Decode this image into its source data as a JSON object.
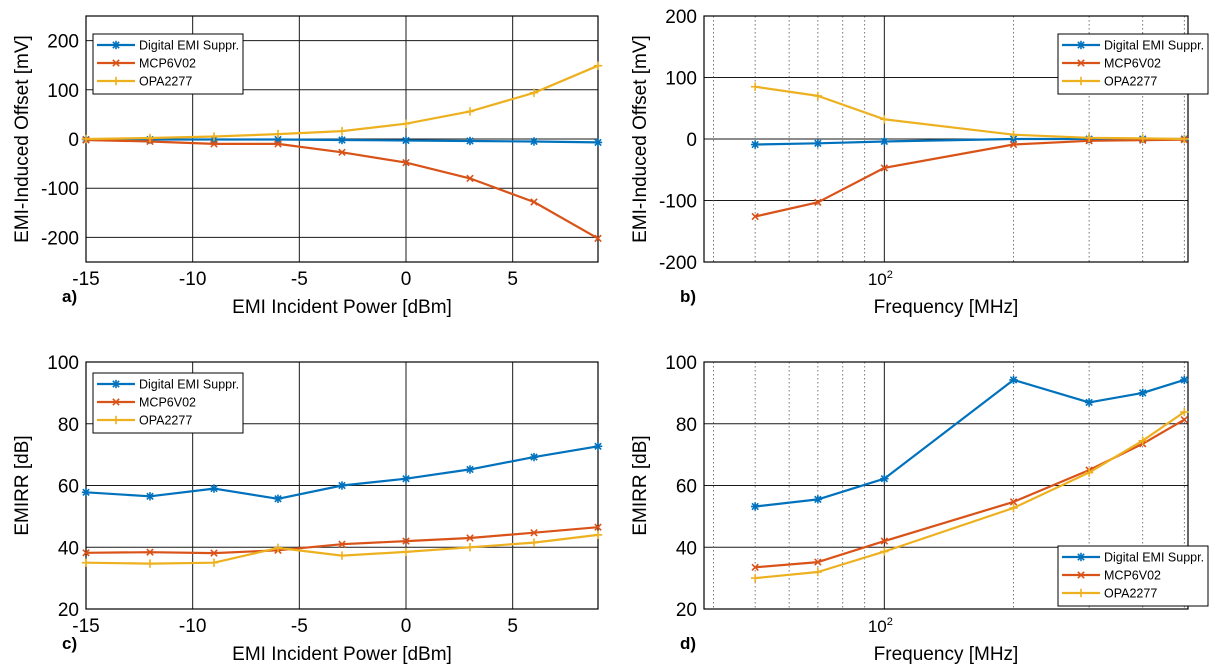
{
  "chart_data": [
    {
      "id": "a",
      "type": "line",
      "panel_label": "a)",
      "xlabel": "EMI Incident Power [dBm]",
      "ylabel": "EMI-Induced Offset [mV]",
      "xscale": "linear",
      "xlim": [
        -15,
        9
      ],
      "ylim": [
        -250,
        250
      ],
      "xticks": [
        -15,
        -10,
        -5,
        0,
        5
      ],
      "xtick_labels": [
        "-15",
        "-10",
        "-5",
        "0",
        "5"
      ],
      "yticks": [
        -200,
        -100,
        0,
        100,
        200
      ],
      "ytick_labels": [
        "-200",
        "-100",
        "0",
        "100",
        "200"
      ],
      "grid": true,
      "legend_position": "top-left",
      "x": [
        -15,
        -12,
        -9,
        -6,
        -3,
        0,
        3,
        6,
        9
      ],
      "series": [
        {
          "name": "Digital EMI Suppr.",
          "color": "#0072BD",
          "marker": "asterisk",
          "values": [
            -1,
            -1,
            -1,
            -1,
            -2,
            -3,
            -4,
            -5,
            -7
          ]
        },
        {
          "name": "MCP6V02",
          "color": "#D95319",
          "marker": "x",
          "values": [
            -2,
            -5,
            -10,
            -10,
            -27,
            -48,
            -80,
            -128,
            -202
          ]
        },
        {
          "name": "OPA2277",
          "color": "#EDB120",
          "marker": "plus",
          "values": [
            0,
            2,
            5,
            10,
            16,
            31,
            56,
            94,
            149
          ]
        }
      ]
    },
    {
      "id": "b",
      "type": "line",
      "panel_label": "b)",
      "xlabel": "Frequency [MHz]",
      "ylabel": "EMI-Induced Offset [mV]",
      "xscale": "log",
      "xlim": [
        38,
        510
      ],
      "ylim": [
        -200,
        200
      ],
      "xticks": [
        100
      ],
      "xtick_labels": [
        "10^2"
      ],
      "yticks": [
        -200,
        -100,
        0,
        100,
        200
      ],
      "ytick_labels": [
        "-200",
        "-100",
        "0",
        "100",
        "200"
      ],
      "grid": true,
      "legend_position": "top-right",
      "x": [
        50,
        70,
        100,
        200,
        300,
        400,
        500
      ],
      "series": [
        {
          "name": "Digital EMI Suppr.",
          "color": "#0072BD",
          "marker": "asterisk",
          "values": [
            -9,
            -7,
            -4,
            0,
            0,
            0,
            0
          ]
        },
        {
          "name": "MCP6V02",
          "color": "#D95319",
          "marker": "x",
          "values": [
            -126,
            -103,
            -47,
            -9,
            -3,
            -2,
            -1
          ]
        },
        {
          "name": "OPA2277",
          "color": "#EDB120",
          "marker": "plus",
          "values": [
            85,
            70,
            32,
            7,
            2,
            1,
            0
          ]
        }
      ]
    },
    {
      "id": "c",
      "type": "line",
      "panel_label": "c)",
      "xlabel": "EMI Incident Power [dBm]",
      "ylabel": "EMIRR [dB]",
      "xscale": "linear",
      "xlim": [
        -15,
        9
      ],
      "ylim": [
        20,
        100
      ],
      "xticks": [
        -15,
        -10,
        -5,
        0,
        5
      ],
      "xtick_labels": [
        "-15",
        "-10",
        "-5",
        "0",
        "5"
      ],
      "yticks": [
        20,
        40,
        60,
        80,
        100
      ],
      "ytick_labels": [
        "20",
        "40",
        "60",
        "80",
        "100"
      ],
      "grid": true,
      "legend_position": "top-left",
      "x": [
        -15,
        -12,
        -9,
        -6,
        -3,
        0,
        3,
        6,
        9
      ],
      "series": [
        {
          "name": "Digital EMI Suppr.",
          "color": "#0072BD",
          "marker": "asterisk",
          "values": [
            57.8,
            56.5,
            59.0,
            55.7,
            60.0,
            62.2,
            65.2,
            69.2,
            72.7
          ]
        },
        {
          "name": "MCP6V02",
          "color": "#D95319",
          "marker": "x",
          "values": [
            38.2,
            38.4,
            38.1,
            39.0,
            41.0,
            42.0,
            43.0,
            44.7,
            46.5
          ]
        },
        {
          "name": "OPA2277",
          "color": "#EDB120",
          "marker": "plus",
          "values": [
            35.0,
            34.7,
            35.0,
            39.8,
            37.3,
            38.5,
            40.0,
            41.5,
            44.0
          ]
        }
      ]
    },
    {
      "id": "d",
      "type": "line",
      "panel_label": "d)",
      "xlabel": "Frequency [MHz]",
      "ylabel": "EMIRR [dB]",
      "xscale": "log",
      "xlim": [
        38,
        510
      ],
      "ylim": [
        20,
        100
      ],
      "xticks": [
        100
      ],
      "xtick_labels": [
        "10^2"
      ],
      "yticks": [
        20,
        40,
        60,
        80,
        100
      ],
      "ytick_labels": [
        "20",
        "40",
        "60",
        "80",
        "100"
      ],
      "grid": true,
      "legend_position": "bottom-right",
      "x": [
        50,
        70,
        100,
        200,
        300,
        400,
        500
      ],
      "series": [
        {
          "name": "Digital EMI Suppr.",
          "color": "#0072BD",
          "marker": "asterisk",
          "values": [
            53.2,
            55.5,
            62.2,
            94.2,
            86.9,
            90.0,
            94.2
          ]
        },
        {
          "name": "MCP6V02",
          "color": "#D95319",
          "marker": "x",
          "values": [
            33.5,
            35.2,
            42.0,
            54.7,
            65.0,
            73.5,
            81.3
          ]
        },
        {
          "name": "OPA2277",
          "color": "#EDB120",
          "marker": "plus",
          "values": [
            30.0,
            32.0,
            38.6,
            52.7,
            64.2,
            74.5,
            83.8
          ]
        }
      ]
    }
  ]
}
